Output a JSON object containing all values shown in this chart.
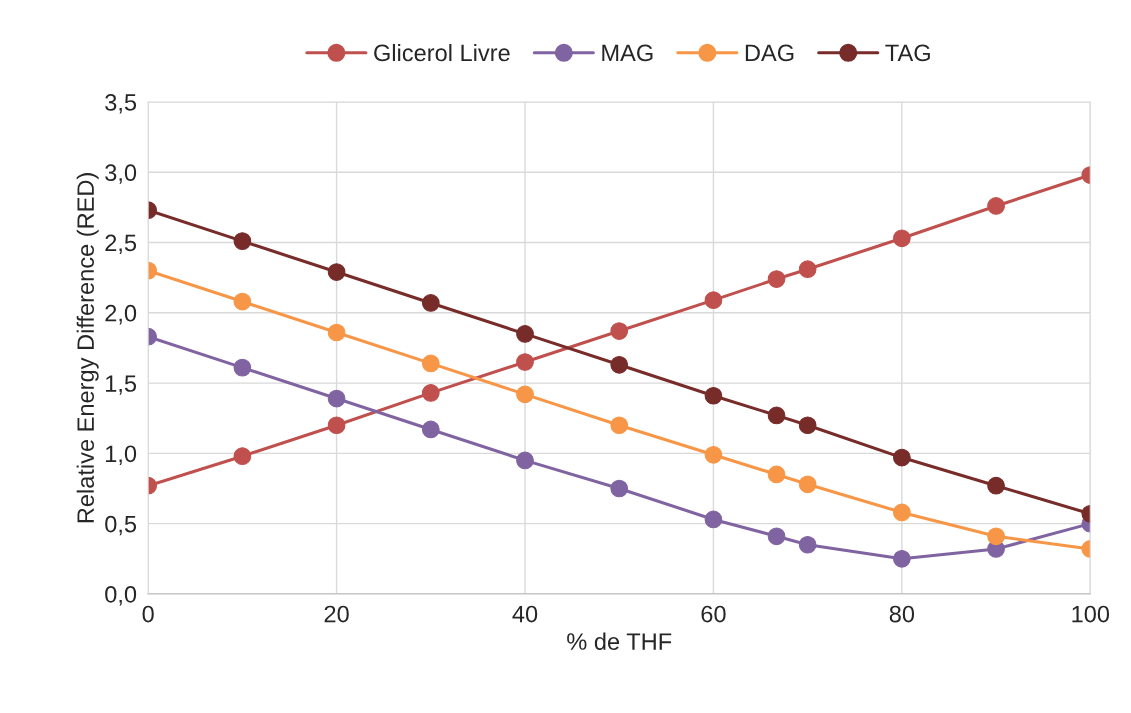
{
  "chart_data": {
    "type": "line",
    "xlabel": "% de THF",
    "ylabel": "Relative Energy Difference (RED)",
    "x": [
      0,
      10,
      20,
      30,
      40,
      50,
      60,
      66.7,
      70,
      80,
      90,
      100
    ],
    "series": [
      {
        "name": "Glicerol Livre",
        "color": "#c0504d",
        "values": [
          0.77,
          0.98,
          1.2,
          1.43,
          1.65,
          1.87,
          2.09,
          2.24,
          2.31,
          2.53,
          2.76,
          2.98
        ]
      },
      {
        "name": "MAG",
        "color": "#8064a2",
        "values": [
          1.83,
          1.61,
          1.39,
          1.17,
          0.95,
          0.75,
          0.53,
          0.41,
          0.35,
          0.25,
          0.32,
          0.5
        ]
      },
      {
        "name": "DAG",
        "color": "#f79646",
        "values": [
          2.3,
          2.08,
          1.86,
          1.64,
          1.42,
          1.2,
          0.99,
          0.85,
          0.78,
          0.58,
          0.41,
          0.32
        ]
      },
      {
        "name": "TAG",
        "color": "#772c2a",
        "values": [
          2.73,
          2.51,
          2.29,
          2.07,
          1.85,
          1.63,
          1.41,
          1.27,
          1.2,
          0.97,
          0.77,
          0.57
        ]
      }
    ],
    "xlim": [
      0,
      100
    ],
    "xticks": [
      0,
      20,
      40,
      60,
      80,
      100
    ],
    "ylim": [
      0,
      3.5
    ],
    "yticks": [
      {
        "value": 0,
        "label": "0,0"
      },
      {
        "value": 0.5,
        "label": "0,5"
      },
      {
        "value": 1,
        "label": "1,0"
      },
      {
        "value": 1.5,
        "label": "1,5"
      },
      {
        "value": 2,
        "label": "2,0"
      },
      {
        "value": 2.5,
        "label": "2,5"
      },
      {
        "value": 3,
        "label": "3,0"
      },
      {
        "value": 3.5,
        "label": "3,5"
      }
    ],
    "grid": true,
    "legend": "top",
    "marker": "circle",
    "line_style": "solid"
  }
}
